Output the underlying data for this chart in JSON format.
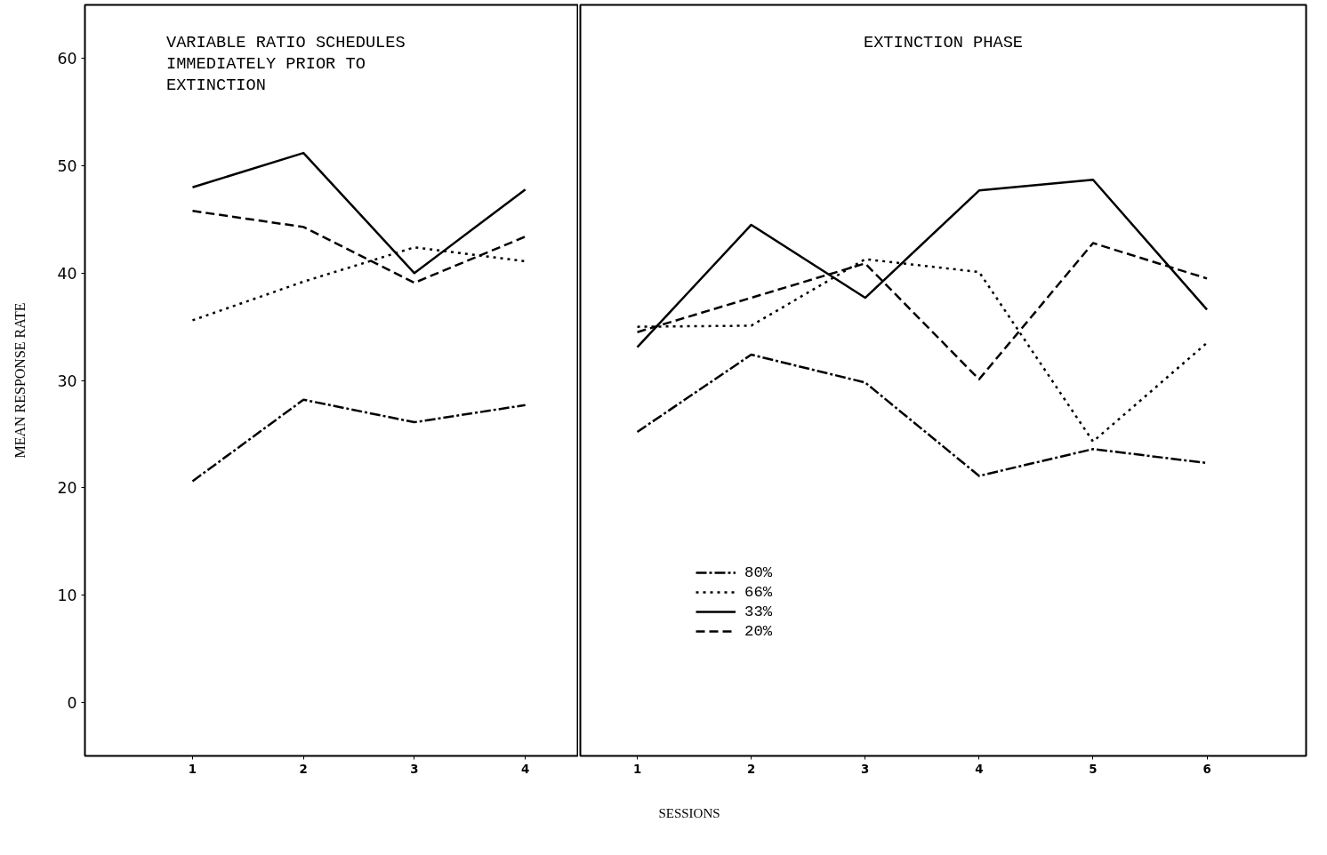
{
  "chart_data": [
    {
      "type": "line",
      "title": "VARIABLE RATIO SCHEDULES\nIMMEDIATELY PRIOR TO\nEXTINCTION",
      "ylabel": "MEAN RESPONSE RATE",
      "x": [
        1,
        2,
        3,
        4
      ],
      "xlim": [
        0.03,
        4.48
      ],
      "xticks": [
        1,
        2,
        3,
        4
      ],
      "ylim": [
        -5,
        65
      ],
      "yticks": [
        0,
        10,
        20,
        30,
        40,
        50,
        60
      ],
      "grid": false,
      "tick_labels": "xy",
      "series": [
        {
          "color": "#000000",
          "line_style": "dashdot",
          "values": [
            20.6,
            28.2,
            26.1,
            27.7
          ]
        },
        {
          "color": "#000000",
          "line_style": "dotted",
          "values": [
            35.6,
            39.2,
            42.4,
            41.1
          ]
        },
        {
          "color": "#000000",
          "line_style": "solid",
          "values": [
            48.0,
            51.2,
            40.0,
            47.8
          ]
        },
        {
          "color": "#000000",
          "line_style": "dashed",
          "values": [
            45.8,
            44.3,
            39.1,
            43.4
          ]
        }
      ]
    },
    {
      "type": "line",
      "title": "EXTINCTION PHASE",
      "xlabel": "SESSIONS",
      "x": [
        1,
        2,
        3,
        4,
        5,
        6
      ],
      "xlim": [
        0.5,
        6.87
      ],
      "xticks": [
        1,
        2,
        3,
        4,
        5,
        6
      ],
      "ylim": [
        -5,
        65
      ],
      "grid": false,
      "tick_labels": "x",
      "legend": "bottom left",
      "series": [
        {
          "name": "80%",
          "color": "#000000",
          "line_style": "dashdot",
          "values": [
            25.2,
            32.4,
            29.8,
            21.1,
            23.6,
            22.3
          ]
        },
        {
          "name": "66%",
          "color": "#000000",
          "line_style": "dotted",
          "values": [
            35.0,
            35.1,
            41.3,
            40.1,
            24.3,
            33.5
          ]
        },
        {
          "name": "33%",
          "color": "#000000",
          "line_style": "solid",
          "values": [
            33.1,
            44.5,
            37.7,
            47.7,
            48.7,
            36.6
          ]
        },
        {
          "name": "20%",
          "color": "#000000",
          "line_style": "dashed",
          "values": [
            34.5,
            37.7,
            40.9,
            30.1,
            42.8,
            39.5
          ]
        }
      ]
    }
  ]
}
